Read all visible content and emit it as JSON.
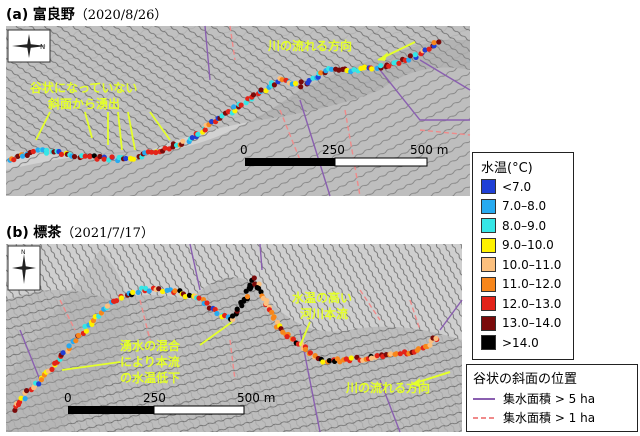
{
  "panel_a": {
    "label": "(a)",
    "site": "富良野",
    "date": "（2020/8/26）",
    "annotation_flow": "川の流れる方向",
    "annotation_source_line1": "谷状になっていない",
    "annotation_source_line2": "斜面から湧出",
    "scale": [
      "0",
      "250",
      "500 m"
    ]
  },
  "panel_b": {
    "label": "(b)",
    "site": "標茶",
    "date": "（2021/7/17）",
    "annotation_main_line1": "水温の高い",
    "annotation_main_line2": "河川本流",
    "annotation_mix_line1": "湧水の混合",
    "annotation_mix_line2": "により本流",
    "annotation_mix_line3": "の水温低下",
    "annotation_flow": "川の流れる方向",
    "scale": [
      "0",
      "250",
      "500 m"
    ]
  },
  "north_label": "N",
  "legend": {
    "title": "水温(°C)",
    "items": [
      {
        "label": "<7.0",
        "color": "#1f3fd6"
      },
      {
        "label": "7.0–8.0",
        "color": "#27aaf0"
      },
      {
        "label": "8.0–9.0",
        "color": "#36e6e6"
      },
      {
        "label": "9.0–10.0",
        "color": "#fff200"
      },
      {
        "label": "10.0–11.0",
        "color": "#fcc07e"
      },
      {
        "label": "11.0–12.0",
        "color": "#f7861b"
      },
      {
        "label": "12.0–13.0",
        "color": "#e32319"
      },
      {
        "label": "13.0–14.0",
        "color": "#7a0a0a"
      },
      {
        "label": ">14.0",
        "color": "#000000"
      }
    ]
  },
  "slope_legend": {
    "title": "谷状の斜面の位置",
    "items": [
      {
        "label": "集水面積 > 5 ha",
        "color": "#8a5fb0"
      },
      {
        "label": "集水面積 > 1 ha",
        "color": "#f08a8a"
      }
    ]
  }
}
